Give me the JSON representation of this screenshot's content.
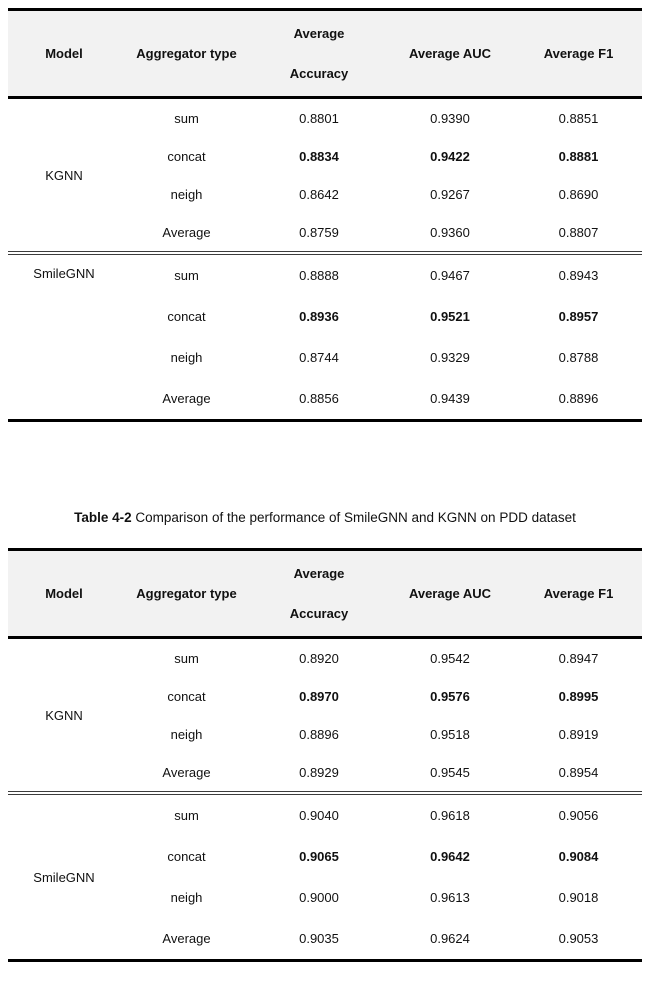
{
  "header": {
    "model": "Model",
    "aggregator": "Aggregator type",
    "accuracy_line1": "Average",
    "accuracy_line2": "Accuracy",
    "auc": "Average AUC",
    "f1": "Average F1"
  },
  "caption": {
    "label": "Table 4-2",
    "text": " Comparison of the performance of SmileGNN and KGNN on PDD dataset"
  },
  "colors": {
    "header_bg": "#f2f2f2",
    "rule": "#000000"
  },
  "table1": {
    "groups": [
      {
        "model": "KGNN",
        "rows": [
          {
            "agg": "sum",
            "acc": "0.8801",
            "auc": "0.9390",
            "f1": "0.8851",
            "bold": false
          },
          {
            "agg": "concat",
            "acc": "0.8834",
            "auc": "0.9422",
            "f1": "0.8881",
            "bold": true
          },
          {
            "agg": "neigh",
            "acc": "0.8642",
            "auc": "0.9267",
            "f1": "0.8690",
            "bold": false
          },
          {
            "agg": "Average",
            "acc": "0.8759",
            "auc": "0.9360",
            "f1": "0.8807",
            "bold": false
          }
        ]
      },
      {
        "model": "SmileGNN",
        "rows": [
          {
            "agg": "sum",
            "acc": "0.8888",
            "auc": "0.9467",
            "f1": "0.8943",
            "bold": false
          },
          {
            "agg": "concat",
            "acc": "0.8936",
            "auc": "0.9521",
            "f1": "0.8957",
            "bold": true
          },
          {
            "agg": "neigh",
            "acc": "0.8744",
            "auc": "0.9329",
            "f1": "0.8788",
            "bold": false
          },
          {
            "agg": "Average",
            "acc": "0.8856",
            "auc": "0.9439",
            "f1": "0.8896",
            "bold": false
          }
        ]
      }
    ]
  },
  "table2": {
    "groups": [
      {
        "model": "KGNN",
        "rows": [
          {
            "agg": "sum",
            "acc": "0.8920",
            "auc": "0.9542",
            "f1": "0.8947",
            "bold": false
          },
          {
            "agg": "concat",
            "acc": "0.8970",
            "auc": "0.9576",
            "f1": "0.8995",
            "bold": true
          },
          {
            "agg": "neigh",
            "acc": "0.8896",
            "auc": "0.9518",
            "f1": "0.8919",
            "bold": false
          },
          {
            "agg": "Average",
            "acc": "0.8929",
            "auc": "0.9545",
            "f1": "0.8954",
            "bold": false
          }
        ]
      },
      {
        "model": "SmileGNN",
        "rows": [
          {
            "agg": "sum",
            "acc": "0.9040",
            "auc": "0.9618",
            "f1": "0.9056",
            "bold": false
          },
          {
            "agg": "concat",
            "acc": "0.9065",
            "auc": "0.9642",
            "f1": "0.9084",
            "bold": true
          },
          {
            "agg": "neigh",
            "acc": "0.9000",
            "auc": "0.9613",
            "f1": "0.9018",
            "bold": false
          },
          {
            "agg": "Average",
            "acc": "0.9035",
            "auc": "0.9624",
            "f1": "0.9053",
            "bold": false
          }
        ]
      }
    ]
  }
}
